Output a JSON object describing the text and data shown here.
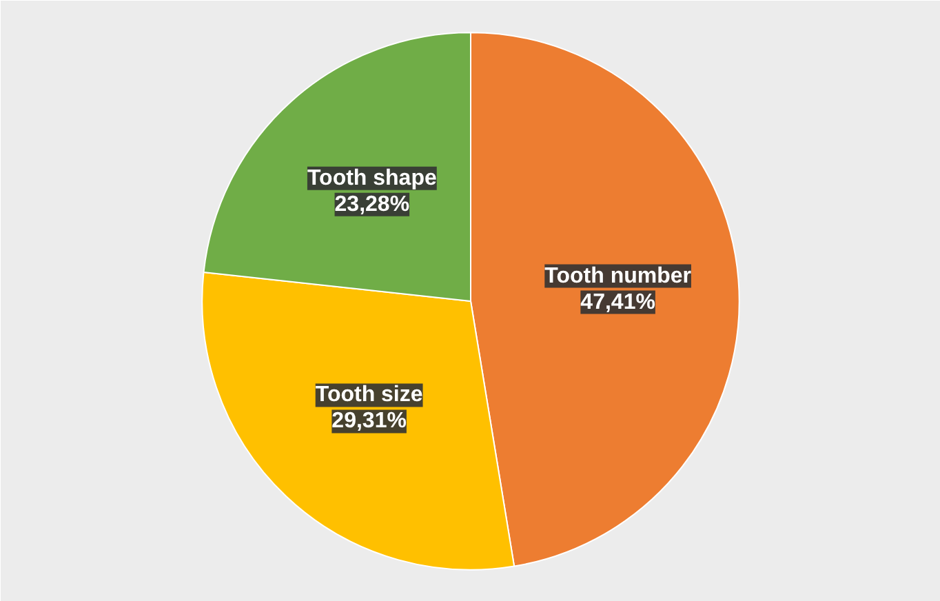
{
  "chart_data": {
    "type": "pie",
    "categories": [
      "Tooth number",
      "Tooth size",
      "Tooth shape"
    ],
    "values": [
      47.41,
      29.31,
      23.28
    ],
    "colors": [
      "#ed7d31",
      "#ffc000",
      "#70ad47"
    ],
    "value_labels": [
      "47,41%",
      "29,31%",
      "23,28%"
    ]
  }
}
